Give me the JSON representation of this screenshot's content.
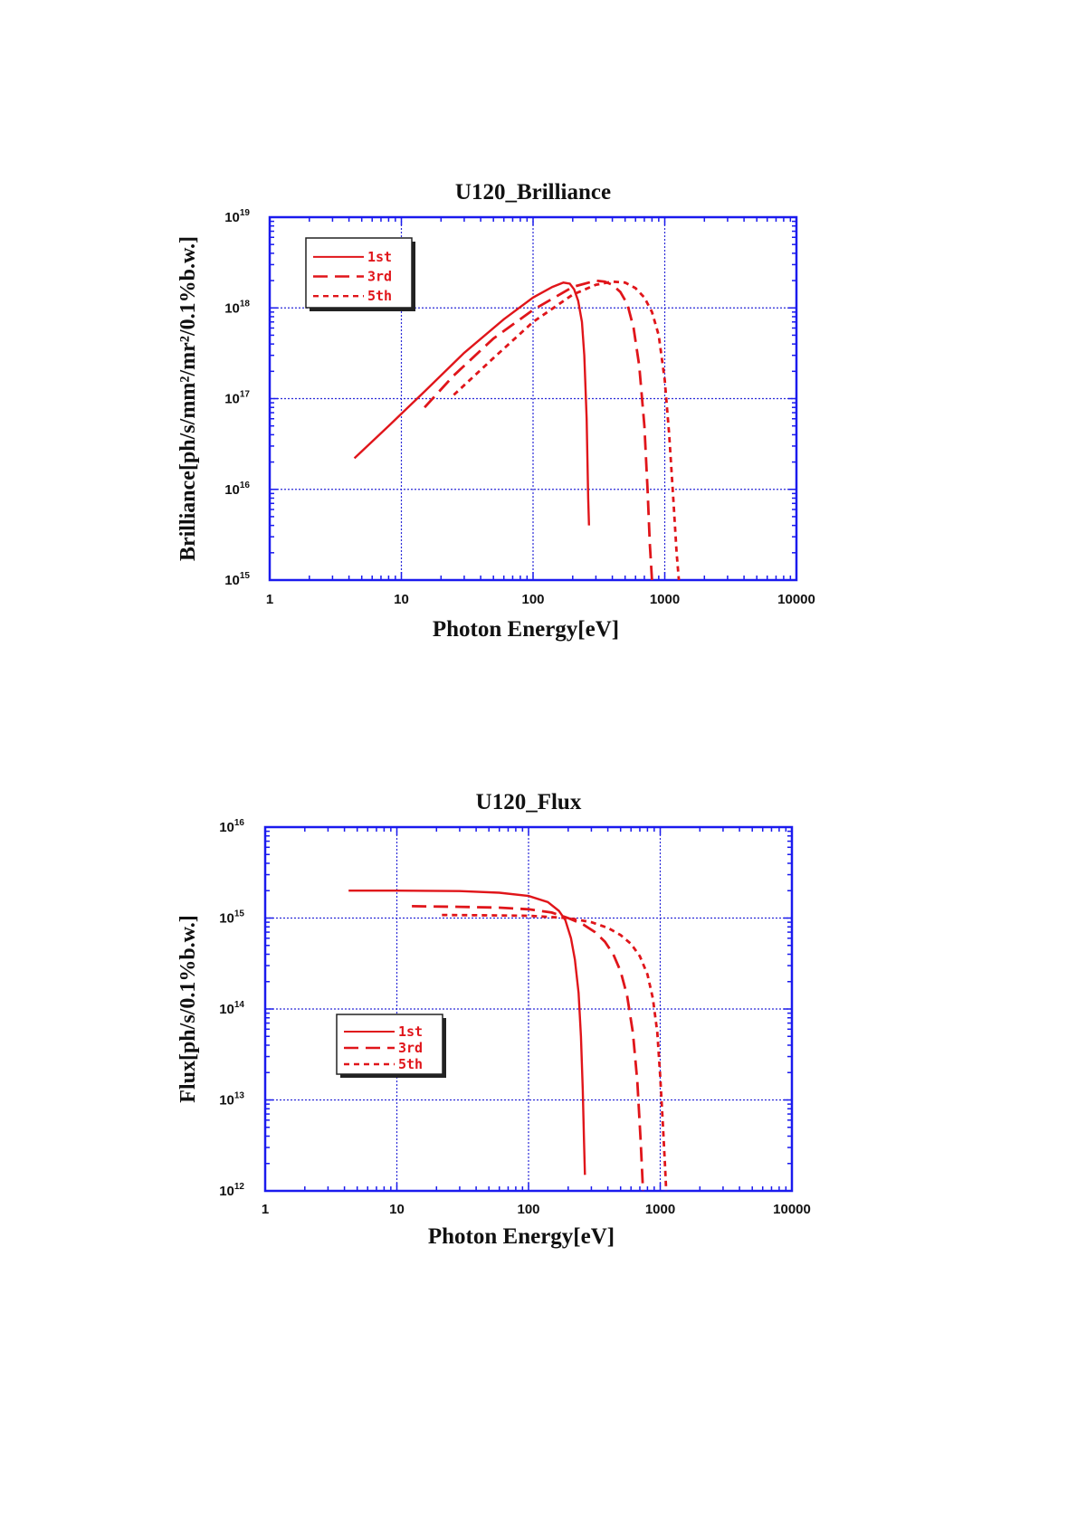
{
  "chart_data": [
    {
      "type": "line",
      "title": "U120_Brilliance",
      "xlabel": "Photon Energy[eV]",
      "ylabel": "Brilliance[ph/s/mm²/mr²/0.1%b.w.]",
      "x_scale": "log",
      "y_scale": "log",
      "xlim": [
        1,
        10000
      ],
      "ylim": [
        1000000000000000.0,
        1e+19
      ],
      "x_ticks": [
        "1",
        "10",
        "100",
        "1000",
        "10000"
      ],
      "y_ticks": [
        {
          "base": "10",
          "exp": "15"
        },
        {
          "base": "10",
          "exp": "16"
        },
        {
          "base": "10",
          "exp": "17"
        },
        {
          "base": "10",
          "exp": "18"
        },
        {
          "base": "10",
          "exp": "19"
        }
      ],
      "grid": true,
      "legend_position": "top-left",
      "colors": {
        "series": "#e0151a",
        "frame": "#1a1aee",
        "grid": "#2a2ad8"
      },
      "series": [
        {
          "name": "1st",
          "dash": "solid",
          "x": [
            4.4,
            8,
            15,
            30,
            60,
            100,
            140,
            170,
            190,
            205,
            220,
            235,
            245,
            255,
            262,
            266
          ],
          "y": [
            2.2e+16,
            5e+16,
            1.2e+17,
            3.2e+17,
            7.5e+17,
            1.3e+18,
            1.7e+18,
            1.9e+18,
            1.85e+18,
            1.6e+18,
            1.2e+18,
            7e+17,
            3e+17,
            6e+16,
            8000000000000000.0,
            4000000000000000.0
          ]
        },
        {
          "name": "3rd",
          "dash": "long",
          "x": [
            15,
            25,
            50,
            100,
            200,
            300,
            350,
            400,
            460,
            520,
            580,
            640,
            700,
            740,
            770,
            800
          ],
          "y": [
            8e+16,
            1.8e+17,
            4.6e+17,
            9.5e+17,
            1.7e+18,
            2e+18,
            1.95e+18,
            1.8e+18,
            1.5e+18,
            1.1e+18,
            6e+17,
            2.3e+17,
            5e+16,
            1e+16,
            2500000000000000.0,
            1000000000000000.0
          ]
        },
        {
          "name": "5th",
          "dash": "short",
          "x": [
            25,
            50,
            100,
            200,
            300,
            400,
            500,
            600,
            700,
            800,
            900,
            1000,
            1080,
            1160,
            1230,
            1280
          ],
          "y": [
            1.1e+17,
            2.8e+17,
            7e+17,
            1.4e+18,
            1.8e+18,
            1.95e+18,
            1.9e+18,
            1.65e+18,
            1.3e+18,
            9e+17,
            5e+17,
            1.6e+17,
            4e+16,
            8000000000000000.0,
            2000000000000000.0,
            1000000000000000.0
          ]
        }
      ]
    },
    {
      "type": "line",
      "title": "U120_Flux",
      "xlabel": "Photon Energy[eV]",
      "ylabel": "Flux[ph/s/0.1%b.w.]",
      "x_scale": "log",
      "y_scale": "log",
      "xlim": [
        1,
        10000
      ],
      "ylim": [
        1000000000000.0,
        1e+16
      ],
      "x_ticks": [
        "1",
        "10",
        "100",
        "1000",
        "10000"
      ],
      "y_ticks": [
        {
          "base": "10",
          "exp": "12"
        },
        {
          "base": "10",
          "exp": "13"
        },
        {
          "base": "10",
          "exp": "14"
        },
        {
          "base": "10",
          "exp": "15"
        },
        {
          "base": "10",
          "exp": "16"
        }
      ],
      "grid": true,
      "legend_position": "center-left",
      "colors": {
        "series": "#e0151a",
        "frame": "#1a1aee",
        "grid": "#2a2ad8"
      },
      "series": [
        {
          "name": "1st",
          "dash": "solid",
          "x": [
            4.3,
            10,
            30,
            60,
            100,
            140,
            170,
            190,
            210,
            225,
            240,
            250,
            258,
            264,
            268
          ],
          "y": [
            2000000000000000.0,
            2000000000000000.0,
            1980000000000000.0,
            1900000000000000.0,
            1750000000000000.0,
            1500000000000000.0,
            1200000000000000.0,
            950000000000000.0,
            600000000000000.0,
            350000000000000.0,
            150000000000000.0,
            50000000000000.0,
            13000000000000.0,
            3500000000000.0,
            1500000000000.0
          ]
        },
        {
          "name": "3rd",
          "dash": "long",
          "x": [
            13,
            30,
            60,
            100,
            150,
            200,
            260,
            320,
            380,
            440,
            500,
            560,
            620,
            670,
            710,
            740
          ],
          "y": [
            1350000000000000.0,
            1330000000000000.0,
            1300000000000000.0,
            1250000000000000.0,
            1150000000000000.0,
            1000000000000000.0,
            850000000000000.0,
            700000000000000.0,
            550000000000000.0,
            400000000000000.0,
            260000000000000.0,
            140000000000000.0,
            55000000000000.0,
            16000000000000.0,
            3500000000000.0,
            1000000000000.0
          ]
        },
        {
          "name": "5th",
          "dash": "short",
          "x": [
            22,
            50,
            100,
            200,
            300,
            400,
            500,
            600,
            700,
            800,
            880,
            950,
            1000,
            1050,
            1090,
            1110
          ],
          "y": [
            1080000000000000.0,
            1070000000000000.0,
            1060000000000000.0,
            1000000000000000.0,
            900000000000000.0,
            780000000000000.0,
            650000000000000.0,
            520000000000000.0,
            380000000000000.0,
            240000000000000.0,
            130000000000000.0,
            55000000000000.0,
            18000000000000.0,
            5000000000000.0,
            1800000000000.0,
            1000000000000.0
          ]
        }
      ]
    }
  ]
}
